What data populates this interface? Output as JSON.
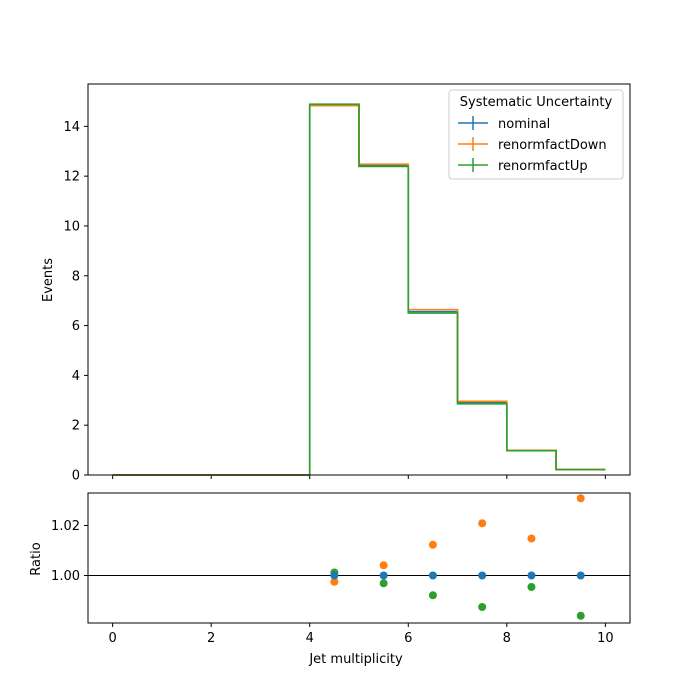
{
  "chart_data": [
    {
      "type": "line",
      "subtype": "step-histogram",
      "ylabel": "Events",
      "xlim": [
        -0.5,
        10.5
      ],
      "ylim": [
        0,
        15.7
      ],
      "bin_edges": [
        0,
        1,
        2,
        3,
        4,
        5,
        6,
        7,
        8,
        9,
        10
      ],
      "yticks": [
        "0",
        "2",
        "4",
        "6",
        "8",
        "10",
        "12",
        "14"
      ],
      "xticks": [
        "0",
        "2",
        "4",
        "6",
        "8",
        "10"
      ],
      "grid": false,
      "legend": {
        "title": "Systematic Uncertainty",
        "placement": "top-right"
      },
      "series": [
        {
          "name": "nominal",
          "color": "#1f77b4",
          "values": [
            0,
            0,
            0,
            0,
            14.87,
            12.43,
            6.56,
            2.9,
            0.98,
            0.22
          ]
        },
        {
          "name": "renormfactDown",
          "color": "#ff7f0e",
          "values": [
            0,
            0,
            0,
            0,
            14.83,
            12.48,
            6.64,
            2.96,
            0.99,
            0.227
          ]
        },
        {
          "name": "renormfactUp",
          "color": "#2ca02c",
          "values": [
            0,
            0,
            0,
            0,
            14.89,
            12.39,
            6.5,
            2.86,
            0.975,
            0.216
          ]
        }
      ]
    },
    {
      "type": "scatter",
      "xlabel": "Jet multiplicity",
      "ylabel": "Ratio",
      "xlim": [
        -0.5,
        10.5
      ],
      "ylim": [
        0.981,
        1.033
      ],
      "xticks": [
        "0",
        "2",
        "4",
        "6",
        "8",
        "10"
      ],
      "yticks": [
        "1.00",
        "1.02"
      ],
      "reference_line": 1.0,
      "x": [
        4.5,
        5.5,
        6.5,
        7.5,
        8.5,
        9.5
      ],
      "series": [
        {
          "name": "nominal",
          "color": "#1f77b4",
          "values": [
            1.0,
            1.0,
            1.0,
            1.0,
            1.0,
            1.0
          ]
        },
        {
          "name": "renormfactDown",
          "color": "#ff7f0e",
          "values": [
            0.9975,
            1.0041,
            1.0123,
            1.0209,
            1.0148,
            1.0309
          ]
        },
        {
          "name": "renormfactUp",
          "color": "#2ca02c",
          "values": [
            1.0012,
            0.9969,
            0.9921,
            0.9874,
            0.9954,
            0.9839
          ]
        }
      ]
    }
  ]
}
